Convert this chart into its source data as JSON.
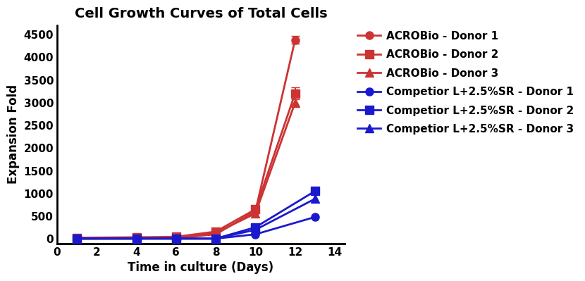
{
  "title": "Cell Growth Curves of Total Cells",
  "xlabel": "Time in culture (Days)",
  "ylabel": "Expansion Fold",
  "xlim": [
    0,
    14.5
  ],
  "ylim": [
    -100,
    4700
  ],
  "yticks": [
    0,
    500,
    1000,
    1500,
    2000,
    2500,
    3000,
    3500,
    4000,
    4500
  ],
  "xticks": [
    0,
    2,
    4,
    6,
    8,
    10,
    12,
    14
  ],
  "acrobio_color": "#CC3333",
  "competitor_color": "#1A1ACC",
  "series": {
    "acrobio_d1": {
      "x": [
        1,
        4,
        6,
        8,
        10,
        12
      ],
      "y": [
        5,
        10,
        15,
        100,
        610,
        4380
      ],
      "yerr": [
        null,
        null,
        null,
        null,
        null,
        80
      ],
      "marker": "o",
      "label": "ACROBio - Donor 1"
    },
    "acrobio_d2": {
      "x": [
        1,
        4,
        6,
        8,
        10,
        12
      ],
      "y": [
        25,
        35,
        45,
        160,
        650,
        3200
      ],
      "yerr": [
        null,
        null,
        null,
        null,
        null,
        130
      ],
      "marker": "s",
      "label": "ACROBio - Donor 2"
    },
    "acrobio_d3": {
      "x": [
        1,
        4,
        6,
        8,
        10,
        12
      ],
      "y": [
        5,
        5,
        30,
        130,
        560,
        3000
      ],
      "yerr": [
        null,
        null,
        null,
        null,
        null,
        null
      ],
      "marker": "^",
      "label": "ACROBio - Donor 3"
    },
    "competitor_d1": {
      "x": [
        1,
        4,
        6,
        8,
        10,
        13
      ],
      "y": [
        5,
        5,
        5,
        5,
        100,
        480
      ],
      "yerr": [
        null,
        null,
        null,
        null,
        null,
        null
      ],
      "marker": "o",
      "label": "Competior L+2.5%SR - Donor 1"
    },
    "competitor_d2": {
      "x": [
        1,
        4,
        6,
        8,
        10,
        13
      ],
      "y": [
        5,
        5,
        5,
        5,
        255,
        1050
      ],
      "yerr": [
        null,
        null,
        null,
        null,
        null,
        null
      ],
      "marker": "s",
      "label": "Competior L+2.5%SR - Donor 2"
    },
    "competitor_d3": {
      "x": [
        1,
        4,
        6,
        8,
        10,
        13
      ],
      "y": [
        5,
        5,
        5,
        5,
        200,
        880
      ],
      "yerr": [
        null,
        null,
        null,
        null,
        null,
        null
      ],
      "marker": "^",
      "label": "Competior L+2.5%SR - Donor 3"
    }
  },
  "linewidth": 2.0,
  "markersize": 8,
  "title_fontsize": 14,
  "label_fontsize": 12,
  "tick_fontsize": 11,
  "legend_fontsize": 11
}
